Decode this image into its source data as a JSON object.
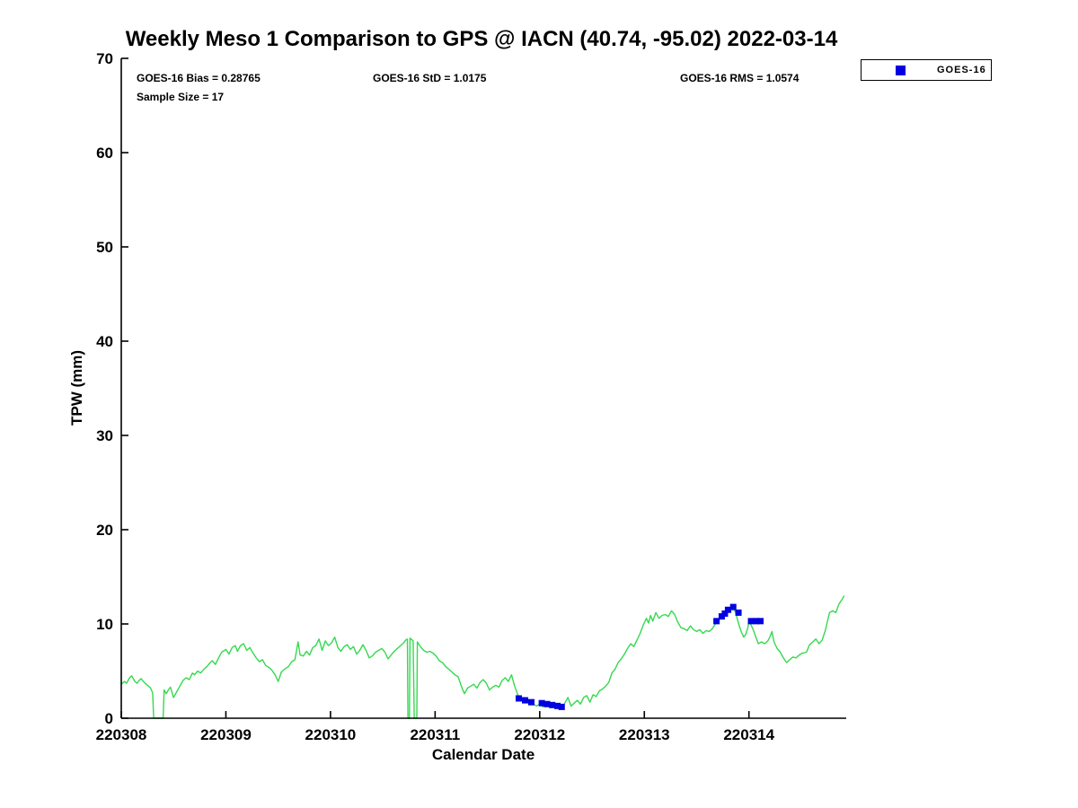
{
  "chart_data": {
    "type": "line+scatter",
    "title": "Weekly Meso 1 Comparison to GPS @ IACN (40.74, -95.02) 2022-03-14",
    "xlabel": "Calendar Date",
    "ylabel": "TPW (mm)",
    "xlim": [
      220308,
      220314.93
    ],
    "ylim": [
      0,
      70
    ],
    "x_ticks": [
      220308,
      220309,
      220310,
      220311,
      220312,
      220313,
      220314
    ],
    "y_ticks": [
      0,
      10,
      20,
      30,
      40,
      50,
      60,
      70
    ],
    "grid": false,
    "legend": {
      "position": "top-right",
      "entries": [
        {
          "label": "GOES-16",
          "marker": "square",
          "color": "#0000e0"
        }
      ]
    },
    "annotations": {
      "bias": "GOES-16 Bias = 0.28765",
      "std": "GOES-16 StD = 1.0175",
      "rms": "GOES-16 RMS = 1.0574",
      "sample_size": "Sample Size = 17"
    },
    "series": [
      {
        "name": "GPS",
        "type": "line",
        "color": "#35d94f",
        "points": [
          [
            220308.0,
            3.6
          ],
          [
            220308.03,
            3.9
          ],
          [
            220308.05,
            3.7
          ],
          [
            220308.08,
            4.3
          ],
          [
            220308.1,
            4.5
          ],
          [
            220308.13,
            3.9
          ],
          [
            220308.15,
            3.7
          ],
          [
            220308.17,
            4.0
          ],
          [
            220308.19,
            4.2
          ],
          [
            220308.22,
            3.8
          ],
          [
            220308.24,
            3.6
          ],
          [
            220308.26,
            3.4
          ],
          [
            220308.28,
            3.2
          ],
          [
            220308.3,
            2.7
          ],
          [
            220308.31,
            0
          ],
          [
            220308.4,
            0
          ],
          [
            220308.41,
            3.0
          ],
          [
            220308.43,
            2.6
          ],
          [
            220308.45,
            3.0
          ],
          [
            220308.47,
            3.3
          ],
          [
            220308.5,
            2.2
          ],
          [
            220308.53,
            2.8
          ],
          [
            220308.56,
            3.4
          ],
          [
            220308.59,
            4.0
          ],
          [
            220308.62,
            4.3
          ],
          [
            220308.65,
            4.1
          ],
          [
            220308.68,
            4.8
          ],
          [
            220308.7,
            4.6
          ],
          [
            220308.73,
            5.0
          ],
          [
            220308.76,
            4.8
          ],
          [
            220308.79,
            5.2
          ],
          [
            220308.82,
            5.5
          ],
          [
            220308.85,
            5.9
          ],
          [
            220308.87,
            6.1
          ],
          [
            220308.9,
            5.7
          ],
          [
            220308.93,
            6.4
          ],
          [
            220308.96,
            7.0
          ],
          [
            220309.0,
            7.3
          ],
          [
            220309.03,
            6.8
          ],
          [
            220309.06,
            7.5
          ],
          [
            220309.09,
            7.7
          ],
          [
            220309.11,
            7.1
          ],
          [
            220309.14,
            7.7
          ],
          [
            220309.17,
            7.9
          ],
          [
            220309.2,
            7.2
          ],
          [
            220309.23,
            7.5
          ],
          [
            220309.26,
            6.9
          ],
          [
            220309.29,
            6.4
          ],
          [
            220309.32,
            6.0
          ],
          [
            220309.35,
            6.2
          ],
          [
            220309.38,
            5.6
          ],
          [
            220309.41,
            5.4
          ],
          [
            220309.44,
            5.1
          ],
          [
            220309.47,
            4.6
          ],
          [
            220309.5,
            3.9
          ],
          [
            220309.53,
            4.9
          ],
          [
            220309.56,
            5.2
          ],
          [
            220309.6,
            5.5
          ],
          [
            220309.63,
            6.0
          ],
          [
            220309.66,
            6.2
          ],
          [
            220309.69,
            8.1
          ],
          [
            220309.71,
            6.7
          ],
          [
            220309.74,
            6.6
          ],
          [
            220309.77,
            7.1
          ],
          [
            220309.8,
            6.7
          ],
          [
            220309.83,
            7.5
          ],
          [
            220309.86,
            7.7
          ],
          [
            220309.89,
            8.4
          ],
          [
            220309.92,
            7.2
          ],
          [
            220309.95,
            8.2
          ],
          [
            220309.98,
            7.7
          ],
          [
            220310.01,
            8.0
          ],
          [
            220310.04,
            8.6
          ],
          [
            220310.07,
            7.5
          ],
          [
            220310.1,
            7.1
          ],
          [
            220310.13,
            7.6
          ],
          [
            220310.16,
            7.8
          ],
          [
            220310.19,
            7.3
          ],
          [
            220310.22,
            7.6
          ],
          [
            220310.25,
            6.8
          ],
          [
            220310.28,
            7.2
          ],
          [
            220310.31,
            7.8
          ],
          [
            220310.34,
            7.2
          ],
          [
            220310.37,
            6.4
          ],
          [
            220310.4,
            6.6
          ],
          [
            220310.43,
            7.0
          ],
          [
            220310.46,
            7.2
          ],
          [
            220310.49,
            7.4
          ],
          [
            220310.52,
            7.0
          ],
          [
            220310.55,
            6.3
          ],
          [
            220310.58,
            6.7
          ],
          [
            220310.61,
            7.1
          ],
          [
            220310.64,
            7.4
          ],
          [
            220310.67,
            7.7
          ],
          [
            220310.7,
            8.0
          ],
          [
            220310.72,
            8.3
          ],
          [
            220310.735,
            8.4
          ],
          [
            220310.74,
            0
          ],
          [
            220310.755,
            0
          ],
          [
            220310.76,
            8.5
          ],
          [
            220310.79,
            8.2
          ],
          [
            220310.8,
            0
          ],
          [
            220310.825,
            0
          ],
          [
            220310.83,
            8.1
          ],
          [
            220310.86,
            7.6
          ],
          [
            220310.89,
            7.2
          ],
          [
            220310.92,
            7.0
          ],
          [
            220310.95,
            7.1
          ],
          [
            220310.98,
            6.9
          ],
          [
            220311.01,
            6.6
          ],
          [
            220311.04,
            6.1
          ],
          [
            220311.07,
            5.9
          ],
          [
            220311.1,
            5.5
          ],
          [
            220311.13,
            5.2
          ],
          [
            220311.16,
            4.9
          ],
          [
            220311.19,
            4.6
          ],
          [
            220311.22,
            4.4
          ],
          [
            220311.25,
            3.4
          ],
          [
            220311.28,
            2.6
          ],
          [
            220311.31,
            3.2
          ],
          [
            220311.34,
            3.4
          ],
          [
            220311.37,
            3.6
          ],
          [
            220311.4,
            3.2
          ],
          [
            220311.43,
            3.8
          ],
          [
            220311.46,
            4.1
          ],
          [
            220311.49,
            3.7
          ],
          [
            220311.52,
            3.0
          ],
          [
            220311.55,
            3.3
          ],
          [
            220311.58,
            3.5
          ],
          [
            220311.61,
            3.3
          ],
          [
            220311.64,
            4.0
          ],
          [
            220311.67,
            4.3
          ],
          [
            220311.7,
            3.9
          ],
          [
            220311.73,
            4.6
          ],
          [
            220311.76,
            3.4
          ],
          [
            220311.79,
            2.5
          ],
          [
            220311.82,
            2.0
          ],
          [
            220311.85,
            2.2
          ],
          [
            220311.88,
            1.9
          ],
          [
            220311.91,
            1.7
          ],
          [
            220311.94,
            1.5
          ],
          [
            220311.97,
            1.3
          ],
          [
            220312.0,
            1.5
          ],
          [
            220312.03,
            1.2
          ],
          [
            220312.06,
            1.6
          ],
          [
            220312.09,
            1.3
          ],
          [
            220312.12,
            1.6
          ],
          [
            220312.15,
            1.2
          ],
          [
            220312.18,
            1.4
          ],
          [
            220312.21,
            1.1
          ],
          [
            220312.24,
            1.6
          ],
          [
            220312.27,
            2.2
          ],
          [
            220312.3,
            1.3
          ],
          [
            220312.33,
            1.6
          ],
          [
            220312.36,
            1.9
          ],
          [
            220312.39,
            1.5
          ],
          [
            220312.42,
            2.2
          ],
          [
            220312.45,
            2.4
          ],
          [
            220312.48,
            1.7
          ],
          [
            220312.51,
            2.5
          ],
          [
            220312.54,
            2.3
          ],
          [
            220312.57,
            2.9
          ],
          [
            220312.6,
            3.1
          ],
          [
            220312.63,
            3.4
          ],
          [
            220312.66,
            3.8
          ],
          [
            220312.69,
            4.8
          ],
          [
            220312.72,
            5.2
          ],
          [
            220312.75,
            5.9
          ],
          [
            220312.78,
            6.3
          ],
          [
            220312.81,
            6.8
          ],
          [
            220312.84,
            7.4
          ],
          [
            220312.87,
            7.9
          ],
          [
            220312.9,
            7.6
          ],
          [
            220312.93,
            8.3
          ],
          [
            220312.96,
            9.0
          ],
          [
            220312.99,
            9.9
          ],
          [
            220313.02,
            10.6
          ],
          [
            220313.04,
            10.1
          ],
          [
            220313.06,
            10.9
          ],
          [
            220313.08,
            10.3
          ],
          [
            220313.11,
            11.2
          ],
          [
            220313.14,
            10.6
          ],
          [
            220313.17,
            10.9
          ],
          [
            220313.2,
            11.0
          ],
          [
            220313.23,
            10.8
          ],
          [
            220313.26,
            11.4
          ],
          [
            220313.29,
            11.0
          ],
          [
            220313.32,
            10.2
          ],
          [
            220313.35,
            9.6
          ],
          [
            220313.38,
            9.5
          ],
          [
            220313.41,
            9.3
          ],
          [
            220313.44,
            9.8
          ],
          [
            220313.47,
            9.4
          ],
          [
            220313.5,
            9.2
          ],
          [
            220313.53,
            9.4
          ],
          [
            220313.56,
            9.0
          ],
          [
            220313.59,
            9.3
          ],
          [
            220313.62,
            9.2
          ],
          [
            220313.65,
            9.5
          ],
          [
            220313.68,
            10.0
          ],
          [
            220313.7,
            10.2
          ],
          [
            220313.72,
            10.5
          ],
          [
            220313.74,
            10.7
          ],
          [
            220313.77,
            11.0
          ],
          [
            220313.8,
            11.3
          ],
          [
            220313.83,
            11.5
          ],
          [
            220313.85,
            11.6
          ],
          [
            220313.87,
            11.3
          ],
          [
            220313.89,
            10.5
          ],
          [
            220313.91,
            9.7
          ],
          [
            220313.93,
            9.1
          ],
          [
            220313.95,
            8.6
          ],
          [
            220313.97,
            8.9
          ],
          [
            220313.99,
            9.6
          ],
          [
            220314.0,
            10.4
          ],
          [
            220314.02,
            9.9
          ],
          [
            220314.04,
            9.4
          ],
          [
            220314.06,
            8.8
          ],
          [
            220314.09,
            7.9
          ],
          [
            220314.12,
            8.1
          ],
          [
            220314.15,
            7.9
          ],
          [
            220314.18,
            8.2
          ],
          [
            220314.2,
            8.6
          ],
          [
            220314.22,
            9.2
          ],
          [
            220314.24,
            8.1
          ],
          [
            220314.27,
            7.4
          ],
          [
            220314.3,
            7.0
          ],
          [
            220314.33,
            6.4
          ],
          [
            220314.36,
            5.9
          ],
          [
            220314.39,
            6.2
          ],
          [
            220314.42,
            6.5
          ],
          [
            220314.45,
            6.4
          ],
          [
            220314.48,
            6.7
          ],
          [
            220314.51,
            6.9
          ],
          [
            220314.55,
            7.0
          ],
          [
            220314.58,
            7.8
          ],
          [
            220314.61,
            8.1
          ],
          [
            220314.64,
            8.4
          ],
          [
            220314.67,
            7.9
          ],
          [
            220314.7,
            8.3
          ],
          [
            220314.73,
            9.3
          ],
          [
            220314.77,
            11.2
          ],
          [
            220314.8,
            11.4
          ],
          [
            220314.83,
            11.2
          ],
          [
            220314.86,
            12.1
          ],
          [
            220314.89,
            12.6
          ],
          [
            220314.91,
            13.0
          ]
        ]
      },
      {
        "name": "GOES-16",
        "type": "scatter",
        "marker": "square",
        "marker_size": 7,
        "color": "#0000e0",
        "points": [
          [
            220311.8,
            2.1
          ],
          [
            220311.86,
            1.9
          ],
          [
            220311.92,
            1.7
          ],
          [
            220312.02,
            1.6
          ],
          [
            220312.07,
            1.5
          ],
          [
            220312.12,
            1.4
          ],
          [
            220312.17,
            1.3
          ],
          [
            220312.21,
            1.2
          ],
          [
            220313.69,
            10.3
          ],
          [
            220313.74,
            10.8
          ],
          [
            220313.77,
            11.1
          ],
          [
            220313.8,
            11.5
          ],
          [
            220313.85,
            11.8
          ],
          [
            220313.9,
            11.2
          ],
          [
            220314.02,
            10.3
          ],
          [
            220314.07,
            10.3
          ],
          [
            220314.11,
            10.3
          ]
        ]
      }
    ]
  }
}
